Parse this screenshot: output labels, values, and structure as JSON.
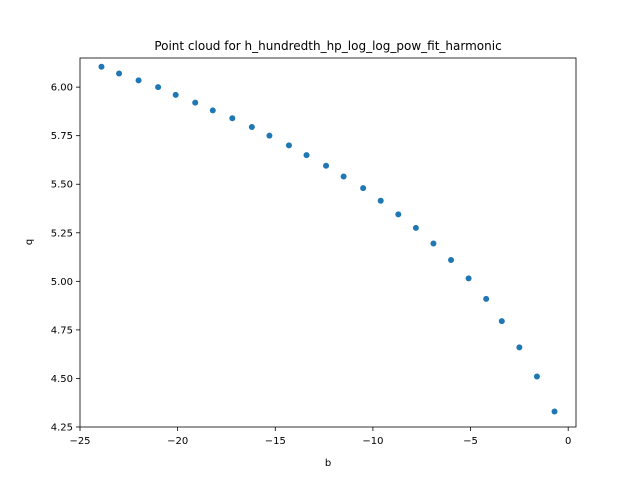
{
  "chart_data": {
    "type": "scatter",
    "title": "Point cloud for h_hundredth_hp_log_log_pow_fit_harmonic",
    "xlabel": "b",
    "ylabel": "q",
    "xlim": [
      -25,
      0.4
    ],
    "ylim": [
      4.25,
      6.15
    ],
    "xticks": [
      -25,
      -20,
      -15,
      -10,
      -5,
      0
    ],
    "xtick_labels": [
      "−25",
      "−20",
      "−15",
      "−10",
      "−5",
      "0"
    ],
    "yticks": [
      4.25,
      4.5,
      4.75,
      5.0,
      5.25,
      5.5,
      5.75,
      6.0
    ],
    "ytick_labels": [
      "4.25",
      "4.50",
      "4.75",
      "5.00",
      "5.25",
      "5.50",
      "5.75",
      "6.00"
    ],
    "grid": false,
    "marker_color": "#1f77b4",
    "points": [
      {
        "x": -23.9,
        "y": 6.105
      },
      {
        "x": -23.0,
        "y": 6.07
      },
      {
        "x": -22.0,
        "y": 6.035
      },
      {
        "x": -21.0,
        "y": 6.0
      },
      {
        "x": -20.1,
        "y": 5.96
      },
      {
        "x": -19.1,
        "y": 5.92
      },
      {
        "x": -18.2,
        "y": 5.88
      },
      {
        "x": -17.2,
        "y": 5.84
      },
      {
        "x": -16.2,
        "y": 5.795
      },
      {
        "x": -15.3,
        "y": 5.75
      },
      {
        "x": -14.3,
        "y": 5.7
      },
      {
        "x": -13.4,
        "y": 5.65
      },
      {
        "x": -12.4,
        "y": 5.595
      },
      {
        "x": -11.5,
        "y": 5.54
      },
      {
        "x": -10.5,
        "y": 5.48
      },
      {
        "x": -9.6,
        "y": 5.415
      },
      {
        "x": -8.7,
        "y": 5.345
      },
      {
        "x": -7.8,
        "y": 5.275
      },
      {
        "x": -6.9,
        "y": 5.195
      },
      {
        "x": -6.0,
        "y": 5.11
      },
      {
        "x": -5.1,
        "y": 5.015
      },
      {
        "x": -4.2,
        "y": 4.91
      },
      {
        "x": -3.4,
        "y": 4.795
      },
      {
        "x": -2.5,
        "y": 4.66
      },
      {
        "x": -1.6,
        "y": 4.51
      },
      {
        "x": -0.7,
        "y": 4.33
      }
    ]
  }
}
